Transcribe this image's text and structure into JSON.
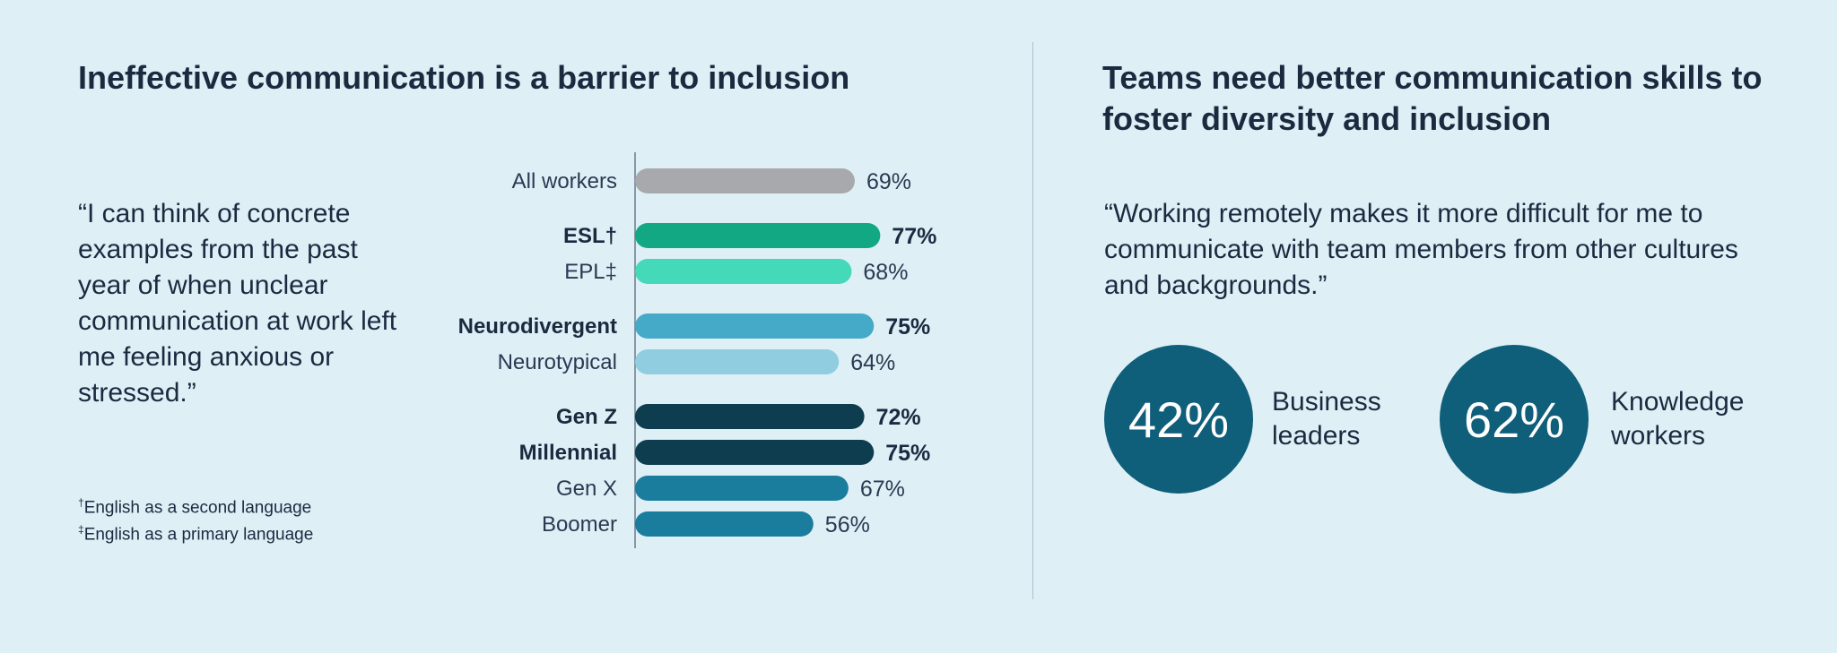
{
  "left": {
    "title": "Ineffective communication is a barrier to inclusion",
    "quote": "“I can think of concrete examples from the past year of when unclear communication at work left me feeling anxious or stressed.”",
    "footnotes": [
      {
        "mark": "†",
        "text": "English as a second language"
      },
      {
        "mark": "‡",
        "text": "English as a primary language"
      }
    ]
  },
  "right": {
    "title": "Teams need better communication skills to foster diversity and inclusion",
    "quote": "“Working remotely makes it more difficult for me to communicate with team members from other cultures and backgrounds.”",
    "stats": [
      {
        "value": "42%",
        "label": "Business leaders"
      },
      {
        "value": "62%",
        "label": "Knowledge workers"
      }
    ]
  },
  "chart_data": {
    "type": "bar",
    "orientation": "horizontal",
    "unit": "%",
    "xlim": [
      0,
      100
    ],
    "categories": [
      "All workers",
      "ESL†",
      "EPL‡",
      "Neurodivergent",
      "Neurotypical",
      "Gen Z",
      "Millennial",
      "Gen X",
      "Boomer"
    ],
    "values": [
      69,
      77,
      68,
      75,
      64,
      72,
      75,
      67,
      56
    ],
    "value_labels": [
      "69%",
      "77%",
      "68%",
      "75%",
      "64%",
      "72%",
      "75%",
      "67%",
      "56%"
    ],
    "bold": [
      false,
      true,
      false,
      true,
      false,
      true,
      true,
      false,
      false
    ],
    "groups": [
      0,
      1,
      1,
      2,
      2,
      3,
      3,
      3,
      3
    ],
    "colors": [
      "#a7a9ac",
      "#12a884",
      "#44d9b8",
      "#45a9c8",
      "#90cde0",
      "#0e3d4f",
      "#0e3d4f",
      "#1a7d9e",
      "#1a7d9e"
    ]
  }
}
